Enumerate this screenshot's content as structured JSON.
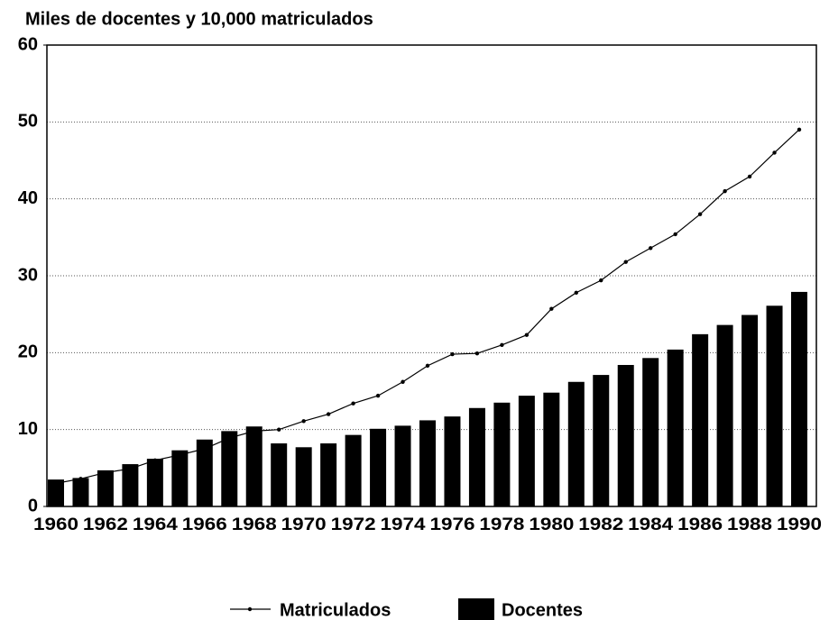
{
  "chart_data": {
    "type": "bar_line",
    "title": "Miles de docentes y 10,000 matriculados",
    "categories": [
      "1960",
      null,
      "1962",
      null,
      "1964",
      null,
      "1966",
      null,
      "1968",
      null,
      "1970",
      null,
      "1972",
      null,
      "1974",
      null,
      "1976",
      null,
      "1978",
      null,
      "1980",
      null,
      "1982",
      null,
      "1984",
      null,
      "1986",
      null,
      "1988",
      null,
      "1990"
    ],
    "series": [
      {
        "name": "Matriculados",
        "type": "line",
        "color": "#000000",
        "values": [
          3.0,
          3.6,
          4.4,
          4.9,
          6.0,
          6.7,
          7.5,
          8.9,
          9.8,
          10.0,
          11.1,
          12.0,
          13.4,
          14.4,
          16.2,
          18.3,
          19.8,
          19.9,
          21.0,
          22.3,
          25.7,
          27.8,
          29.4,
          31.8,
          33.6,
          35.4,
          38.0,
          41.0,
          42.9,
          46.0,
          49.0
        ]
      },
      {
        "name": "Docentes",
        "type": "bar",
        "color": "#000000",
        "values": [
          3.5,
          3.7,
          4.7,
          5.5,
          6.2,
          7.3,
          8.7,
          9.8,
          10.4,
          8.2,
          7.7,
          8.2,
          9.3,
          10.1,
          10.5,
          11.2,
          11.7,
          12.8,
          13.5,
          14.4,
          14.8,
          16.2,
          17.1,
          18.4,
          19.3,
          20.4,
          22.4,
          23.6,
          24.9,
          26.1,
          27.9
        ]
      }
    ],
    "ylim": [
      0,
      60
    ],
    "yticks": [
      0,
      10,
      20,
      30,
      40,
      50,
      60
    ],
    "grid": true,
    "legend": "bottom"
  }
}
